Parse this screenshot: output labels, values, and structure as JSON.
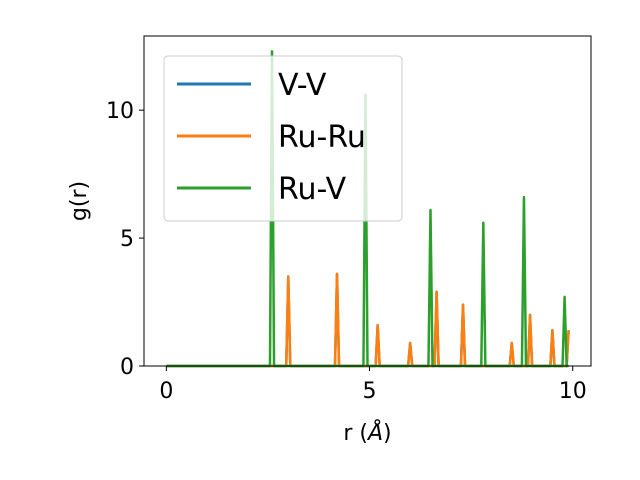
{
  "chart_data": {
    "type": "line",
    "title": "",
    "xlabel": "r (",
    "xlabel_unit": "Å",
    "xlabel_close": ")",
    "ylabel": "g(r)",
    "xlim": [
      -0.55,
      10.45
    ],
    "ylim": [
      0,
      12.9
    ],
    "xticks": [
      0,
      5,
      10
    ],
    "xtick_labels": [
      "0",
      "5",
      "10"
    ],
    "yticks": [
      0,
      5,
      10
    ],
    "ytick_labels": [
      "0",
      "5",
      "10"
    ],
    "grid": false,
    "legend_position": "upper-left",
    "series": [
      {
        "name": "V-V",
        "color": "#1f77b4",
        "x": [
          0,
          2.95,
          3.0,
          3.05,
          4.15,
          4.2,
          4.25,
          5.15,
          5.2,
          5.25,
          5.95,
          6.0,
          6.05,
          6.6,
          6.65,
          6.7,
          7.25,
          7.3,
          7.35,
          8.45,
          8.5,
          8.55,
          8.9,
          8.95,
          9.0,
          9.45,
          9.5,
          9.55,
          9.85,
          9.9
        ],
        "y": [
          0,
          0,
          3.5,
          0,
          0,
          3.6,
          0,
          0,
          1.6,
          0,
          0,
          0.9,
          0,
          0,
          2.9,
          0,
          0,
          2.4,
          0,
          0,
          0.9,
          0,
          0,
          2.0,
          0,
          0,
          1.4,
          0,
          0,
          1.4
        ]
      },
      {
        "name": "Ru-Ru",
        "color": "#ff7f0e",
        "x": [
          0,
          2.95,
          3.0,
          3.05,
          4.15,
          4.2,
          4.25,
          5.15,
          5.2,
          5.25,
          5.95,
          6.0,
          6.05,
          6.6,
          6.65,
          6.7,
          7.25,
          7.3,
          7.35,
          8.45,
          8.5,
          8.55,
          8.9,
          8.95,
          9.0,
          9.45,
          9.5,
          9.55,
          9.85,
          9.9
        ],
        "y": [
          0,
          0,
          3.5,
          0,
          0,
          3.6,
          0,
          0,
          1.6,
          0,
          0,
          0.9,
          0,
          0,
          2.9,
          0,
          0,
          2.4,
          0,
          0,
          0.9,
          0,
          0,
          2.0,
          0,
          0,
          1.4,
          0,
          0,
          1.4
        ]
      },
      {
        "name": "Ru-V",
        "color": "#2ca02c",
        "x": [
          0,
          2.55,
          2.6,
          2.65,
          4.85,
          4.9,
          4.95,
          6.45,
          6.5,
          6.55,
          7.75,
          7.8,
          7.85,
          8.75,
          8.8,
          8.85,
          9.75,
          9.8,
          9.85,
          9.9
        ],
        "y": [
          0,
          0,
          12.3,
          0,
          0,
          10.6,
          0,
          0,
          6.1,
          0,
          0,
          5.6,
          0,
          0,
          6.6,
          0,
          0,
          2.7,
          0,
          0
        ]
      }
    ]
  }
}
